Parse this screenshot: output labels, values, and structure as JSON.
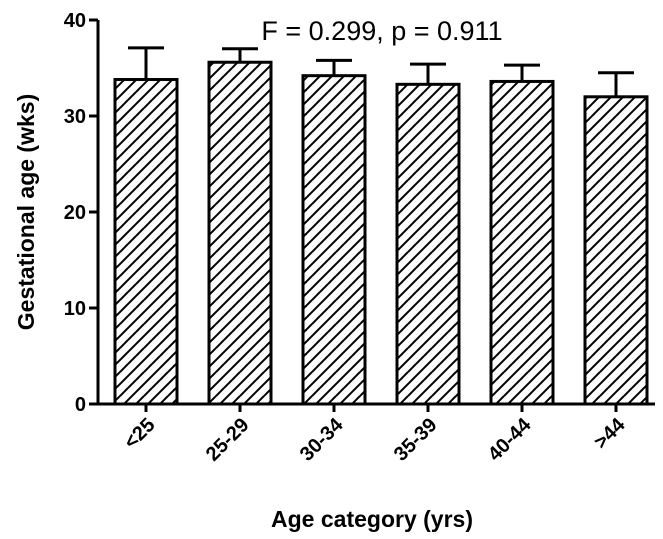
{
  "chart_data": {
    "type": "bar",
    "title": "",
    "annotation": "F = 0.299, p = 0.911",
    "xlabel": "Age category (yrs)",
    "ylabel": "Gestational age (wks)",
    "categories": [
      "<25",
      "25-29",
      "30-34",
      "35-39",
      "40-44",
      ">44"
    ],
    "values": [
      33.8,
      35.6,
      34.2,
      33.3,
      33.6,
      32.0
    ],
    "error_upper": [
      37.1,
      37.0,
      35.8,
      35.4,
      35.3,
      34.5
    ],
    "ylim": [
      0,
      40
    ],
    "yticks": [
      0,
      10,
      20,
      30,
      40
    ],
    "bar_fill": "diagonal-hatch",
    "grid": false,
    "legend": "none"
  }
}
